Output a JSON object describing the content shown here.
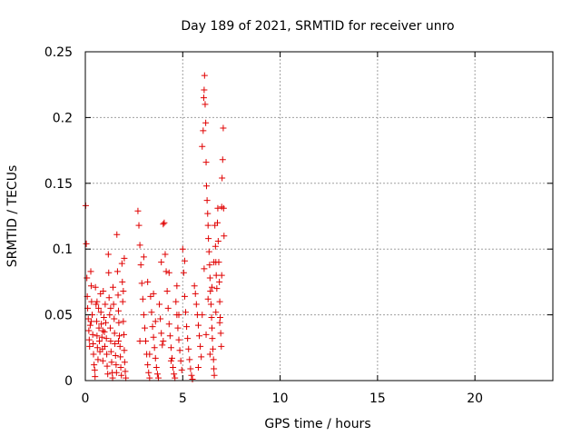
{
  "chart_data": {
    "type": "scatter",
    "title": "Day 189 of 2021, SRMTID for receiver unro",
    "xlabel": "GPS time / hours",
    "ylabel": "SRMTID / TECUs",
    "xlim": [
      0,
      24
    ],
    "ylim": [
      0,
      0.25
    ],
    "xticks": [
      0,
      5,
      10,
      15,
      20
    ],
    "xtick_labels": [
      "0",
      "5",
      "10",
      "15",
      "20"
    ],
    "yticks": [
      0,
      0.05,
      0.1,
      0.15,
      0.2,
      0.25
    ],
    "ytick_labels": [
      "0",
      "0.05",
      "0.1",
      "0.15",
      "0.2",
      "0.25"
    ],
    "grid": true,
    "marker": "plus",
    "color": "#e00000",
    "series": [
      {
        "points": [
          [
            0.02,
            0.133
          ],
          [
            0.05,
            0.104
          ],
          [
            0.08,
            0.078
          ],
          [
            0.1,
            0.064
          ],
          [
            0.12,
            0.055
          ],
          [
            0.15,
            0.047
          ],
          [
            0.18,
            0.038
          ],
          [
            0.2,
            0.031
          ],
          [
            0.22,
            0.026
          ],
          [
            0.25,
            0.042
          ],
          [
            0.28,
            0.083
          ],
          [
            0.3,
            0.072
          ],
          [
            0.32,
            0.06
          ],
          [
            0.35,
            0.05
          ],
          [
            0.38,
            0.035
          ],
          [
            0.4,
            0.028
          ],
          [
            0.42,
            0.02
          ],
          [
            0.45,
            0.012
          ],
          [
            0.48,
            0.008
          ],
          [
            0.5,
            0.003
          ],
          [
            0.52,
            0.071
          ],
          [
            0.55,
            0.058
          ],
          [
            0.58,
            0.045
          ],
          [
            0.6,
            0.034
          ],
          [
            0.62,
            0.025
          ],
          [
            0.65,
            0.016
          ],
          [
            0.68,
            0.055
          ],
          [
            0.7,
            0.04
          ],
          [
            0.72,
            0.03
          ],
          [
            0.75,
            0.022
          ],
          [
            0.78,
            0.066
          ],
          [
            0.8,
            0.052
          ],
          [
            0.82,
            0.043
          ],
          [
            0.85,
            0.033
          ],
          [
            0.88,
            0.024
          ],
          [
            0.9,
            0.015
          ],
          [
            0.92,
            0.068
          ],
          [
            0.95,
            0.048
          ],
          [
            0.98,
            0.037
          ],
          [
            1.0,
            0.026
          ],
          [
            1.02,
            0.058
          ],
          [
            1.05,
            0.044
          ],
          [
            1.08,
            0.032
          ],
          [
            1.1,
            0.02
          ],
          [
            1.12,
            0.011
          ],
          [
            1.15,
            0.005
          ],
          [
            1.18,
            0.096
          ],
          [
            1.2,
            0.082
          ],
          [
            1.22,
            0.063
          ],
          [
            1.25,
            0.05
          ],
          [
            1.28,
            0.04
          ],
          [
            1.3,
            0.03
          ],
          [
            1.32,
            0.022
          ],
          [
            1.35,
            0.014
          ],
          [
            1.38,
            0.006
          ],
          [
            1.4,
            0.002
          ],
          [
            1.42,
            0.071
          ],
          [
            1.45,
            0.058
          ],
          [
            1.48,
            0.047
          ],
          [
            1.5,
            0.036
          ],
          [
            1.52,
            0.028
          ],
          [
            1.55,
            0.019
          ],
          [
            1.58,
            0.012
          ],
          [
            1.6,
            0.006
          ],
          [
            1.62,
            0.111
          ],
          [
            1.65,
            0.083
          ],
          [
            1.68,
            0.065
          ],
          [
            1.7,
            0.053
          ],
          [
            1.72,
            0.044
          ],
          [
            1.75,
            0.034
          ],
          [
            1.78,
            0.026
          ],
          [
            1.8,
            0.018
          ],
          [
            1.82,
            0.01
          ],
          [
            1.85,
            0.004
          ],
          [
            1.88,
            0.089
          ],
          [
            1.9,
            0.075
          ],
          [
            1.92,
            0.06
          ],
          [
            1.95,
            0.045
          ],
          [
            1.98,
            0.035
          ],
          [
            2.0,
            0.023
          ],
          [
            2.02,
            0.014
          ],
          [
            2.05,
            0.007
          ],
          [
            2.08,
            0.002
          ],
          [
            2.0,
            0.093
          ],
          [
            1.95,
            0.068
          ],
          [
            0.3,
            0.045
          ],
          [
            0.6,
            0.06
          ],
          [
            0.9,
            0.038
          ],
          [
            1.3,
            0.055
          ],
          [
            1.7,
            0.03
          ],
          [
            2.7,
            0.129
          ],
          [
            2.75,
            0.118
          ],
          [
            2.8,
            0.103
          ],
          [
            2.85,
            0.088
          ],
          [
            2.9,
            0.074
          ],
          [
            2.95,
            0.062
          ],
          [
            3.0,
            0.05
          ],
          [
            3.05,
            0.04
          ],
          [
            3.1,
            0.03
          ],
          [
            3.15,
            0.02
          ],
          [
            3.2,
            0.012
          ],
          [
            3.25,
            0.006
          ],
          [
            3.3,
            0.002
          ],
          [
            3.35,
            0.064
          ],
          [
            3.4,
            0.052
          ],
          [
            3.45,
            0.041
          ],
          [
            3.5,
            0.033
          ],
          [
            3.55,
            0.025
          ],
          [
            3.6,
            0.017
          ],
          [
            3.65,
            0.01
          ],
          [
            3.7,
            0.005
          ],
          [
            3.75,
            0.002
          ],
          [
            3.8,
            0.058
          ],
          [
            3.85,
            0.047
          ],
          [
            3.9,
            0.036
          ],
          [
            3.95,
            0.027
          ],
          [
            4.0,
            0.119
          ],
          [
            4.05,
            0.12
          ],
          [
            4.1,
            0.096
          ],
          [
            4.15,
            0.083
          ],
          [
            4.2,
            0.068
          ],
          [
            4.25,
            0.055
          ],
          [
            4.3,
            0.043
          ],
          [
            4.35,
            0.034
          ],
          [
            4.4,
            0.025
          ],
          [
            4.45,
            0.017
          ],
          [
            4.5,
            0.01
          ],
          [
            4.55,
            0.005
          ],
          [
            4.6,
            0.002
          ],
          [
            4.65,
            0.06
          ],
          [
            4.7,
            0.05
          ],
          [
            4.75,
            0.04
          ],
          [
            4.8,
            0.031
          ],
          [
            4.85,
            0.023
          ],
          [
            4.9,
            0.015
          ],
          [
            4.95,
            0.008
          ],
          [
            5.0,
            0.1
          ],
          [
            5.05,
            0.082
          ],
          [
            5.1,
            0.064
          ],
          [
            5.15,
            0.052
          ],
          [
            5.2,
            0.041
          ],
          [
            5.25,
            0.032
          ],
          [
            5.3,
            0.024
          ],
          [
            5.35,
            0.016
          ],
          [
            5.4,
            0.009
          ],
          [
            5.45,
            0.004
          ],
          [
            5.5,
            0.001
          ],
          [
            3.0,
            0.094
          ],
          [
            3.2,
            0.075
          ],
          [
            3.5,
            0.066
          ],
          [
            3.9,
            0.09
          ],
          [
            4.3,
            0.082
          ],
          [
            4.7,
            0.072
          ],
          [
            5.1,
            0.091
          ],
          [
            2.8,
            0.03
          ],
          [
            3.3,
            0.02
          ],
          [
            3.6,
            0.045
          ],
          [
            4.0,
            0.03
          ],
          [
            4.4,
            0.015
          ],
          [
            4.8,
            0.05
          ],
          [
            5.6,
            0.072
          ],
          [
            5.65,
            0.066
          ],
          [
            5.7,
            0.058
          ],
          [
            5.75,
            0.05
          ],
          [
            5.8,
            0.042
          ],
          [
            5.85,
            0.034
          ],
          [
            5.9,
            0.026
          ],
          [
            5.95,
            0.018
          ],
          [
            6.0,
            0.178
          ],
          [
            6.05,
            0.19
          ],
          [
            6.08,
            0.215
          ],
          [
            6.1,
            0.221
          ],
          [
            6.12,
            0.232
          ],
          [
            6.15,
            0.21
          ],
          [
            6.18,
            0.196
          ],
          [
            6.2,
            0.166
          ],
          [
            6.22,
            0.148
          ],
          [
            6.25,
            0.137
          ],
          [
            6.28,
            0.127
          ],
          [
            6.3,
            0.118
          ],
          [
            6.32,
            0.108
          ],
          [
            6.35,
            0.098
          ],
          [
            6.38,
            0.088
          ],
          [
            6.4,
            0.078
          ],
          [
            6.42,
            0.068
          ],
          [
            6.45,
            0.058
          ],
          [
            6.48,
            0.048
          ],
          [
            6.5,
            0.04
          ],
          [
            6.52,
            0.032
          ],
          [
            6.55,
            0.024
          ],
          [
            6.58,
            0.016
          ],
          [
            6.6,
            0.009
          ],
          [
            6.62,
            0.004
          ],
          [
            6.65,
            0.118
          ],
          [
            6.68,
            0.102
          ],
          [
            6.7,
            0.09
          ],
          [
            6.72,
            0.08
          ],
          [
            6.75,
            0.07
          ],
          [
            6.78,
            0.12
          ],
          [
            6.8,
            0.131
          ],
          [
            6.82,
            0.106
          ],
          [
            6.85,
            0.09
          ],
          [
            6.88,
            0.075
          ],
          [
            6.9,
            0.06
          ],
          [
            6.92,
            0.048
          ],
          [
            6.95,
            0.036
          ],
          [
            6.98,
            0.026
          ],
          [
            7.0,
            0.132
          ],
          [
            7.02,
            0.154
          ],
          [
            7.05,
            0.168
          ],
          [
            7.08,
            0.192
          ],
          [
            7.1,
            0.131
          ],
          [
            7.12,
            0.11
          ],
          [
            6.1,
            0.085
          ],
          [
            6.3,
            0.062
          ],
          [
            6.5,
            0.071
          ],
          [
            6.7,
            0.052
          ],
          [
            6.9,
            0.044
          ],
          [
            6.2,
            0.035
          ],
          [
            6.4,
            0.02
          ],
          [
            5.8,
            0.01
          ],
          [
            6.0,
            0.05
          ],
          [
            6.6,
            0.09
          ],
          [
            7.0,
            0.08
          ]
        ]
      }
    ]
  }
}
